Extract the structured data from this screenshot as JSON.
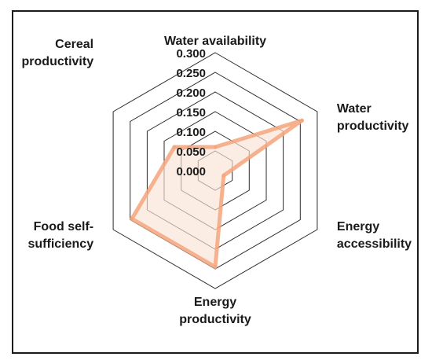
{
  "chart_data": {
    "type": "radar",
    "axes": [
      [
        "Water availability"
      ],
      [
        "Water",
        "productivity"
      ],
      [
        "Energy",
        "accessibility"
      ],
      [
        "Energy",
        "productivity"
      ],
      [
        "Food self-",
        "sufficiency"
      ],
      [
        "Cereal",
        "productivity"
      ]
    ],
    "ticks": [
      "0.000",
      "0.050",
      "0.100",
      "0.150",
      "0.200",
      "0.250",
      "0.300"
    ],
    "rlim": [
      0,
      0.3
    ],
    "series": [
      {
        "values": [
          0.06,
          0.255,
          0.025,
          0.245,
          0.245,
          0.12
        ],
        "color": "#f4a57d",
        "fill": "#fbe4d6"
      }
    ],
    "grid": true,
    "legend": "none"
  }
}
